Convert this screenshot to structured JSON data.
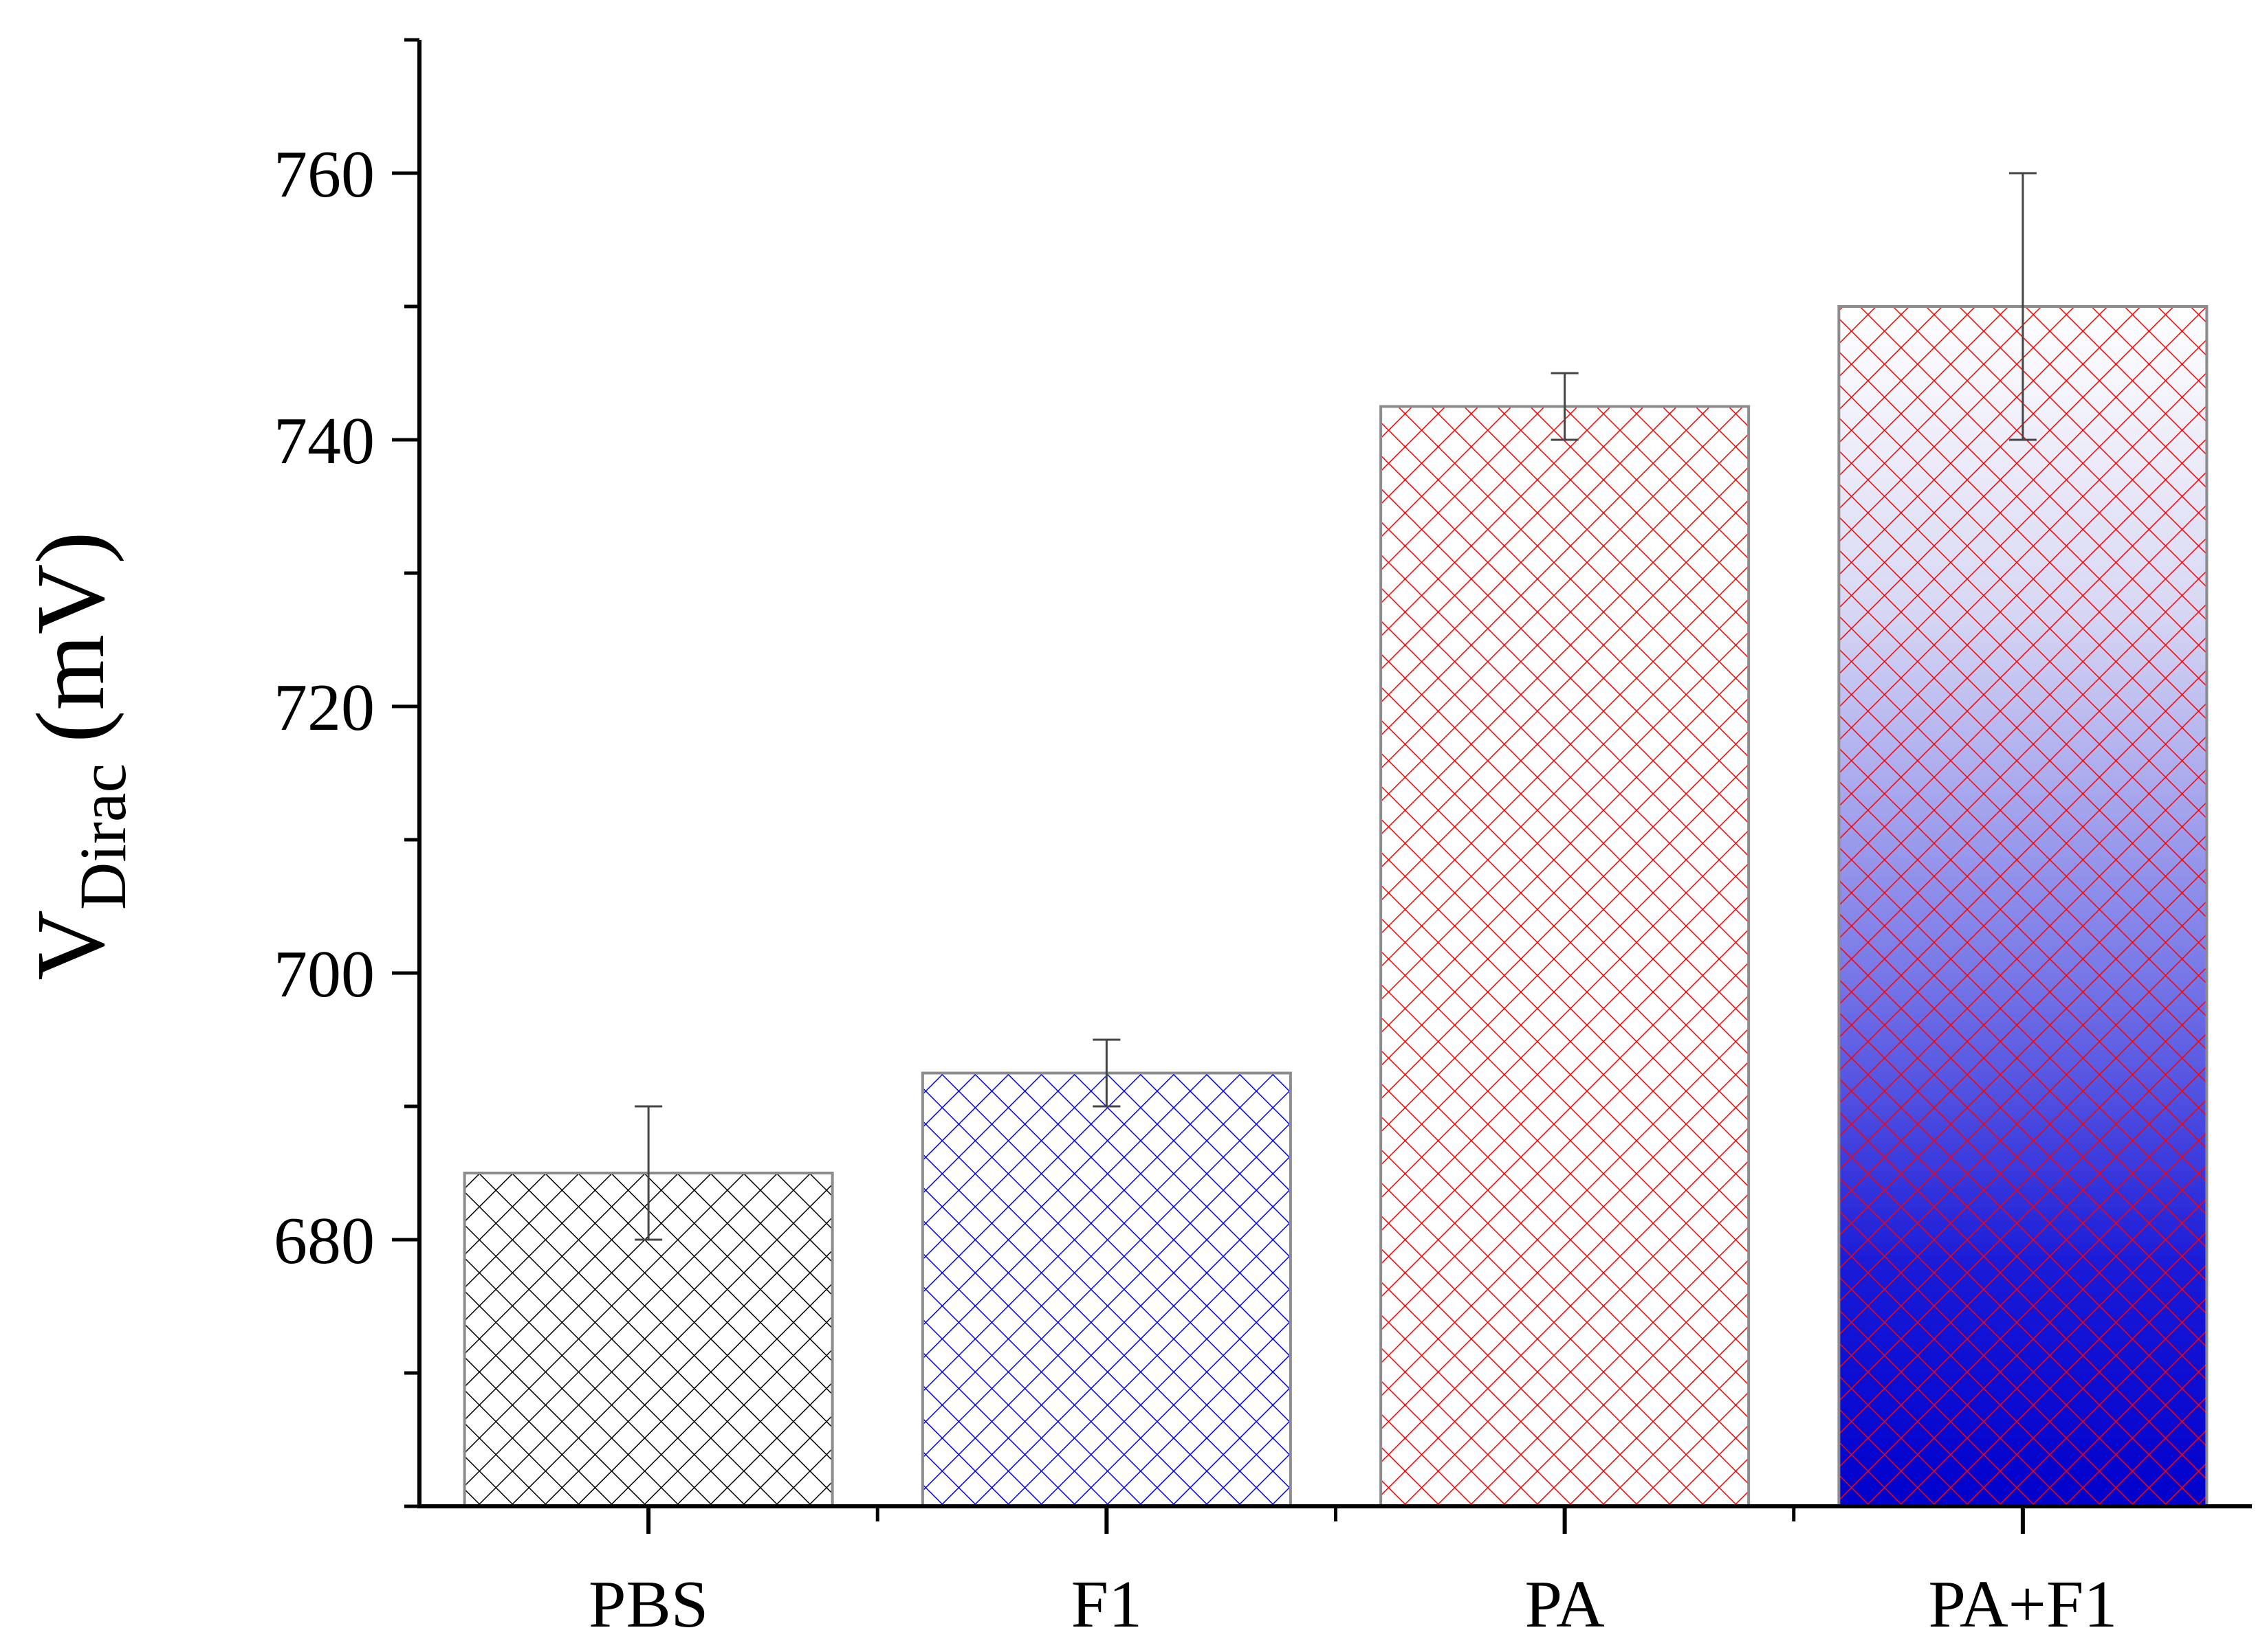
{
  "chart_data": {
    "type": "bar",
    "title": "",
    "xlabel": "",
    "ylabel": {
      "main": "V",
      "subscript": "Dirac",
      "unit": "(mV)"
    },
    "ylim": [
      660,
      770
    ],
    "y_major_ticks": [
      680,
      700,
      720,
      740,
      760
    ],
    "y_minor_step": 10,
    "grid": false,
    "legend": "none",
    "categories": [
      "PBS",
      "F1",
      "PA",
      "PA+F1"
    ],
    "values": [
      685,
      692.5,
      742.5,
      750
    ],
    "errors": [
      5,
      2.5,
      2.5,
      10
    ],
    "bar_styles": [
      {
        "hatch_color": "#000000",
        "fill": "none",
        "edge_color": "#8c8c8c"
      },
      {
        "hatch_color": "#0000ff",
        "fill": "none",
        "edge_color": "#8c8c8c"
      },
      {
        "hatch_color": "#ff0000",
        "fill": "none",
        "edge_color": "#8c8c8c"
      },
      {
        "hatch_color": "#ff0000",
        "fill": "gradient",
        "gradient_top": "#ffffff",
        "gradient_bottom": "#0000cc",
        "edge_color": "#8c8c8c"
      }
    ]
  }
}
